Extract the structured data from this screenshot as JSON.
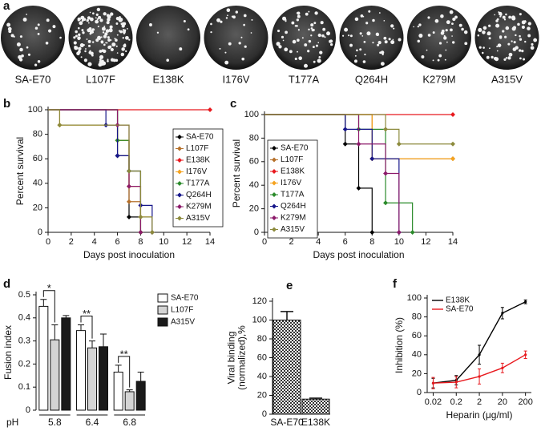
{
  "chart_data": [
    {
      "type": "plaque",
      "panel": "a",
      "categories": [
        "SA-E70",
        "L107F",
        "E138K",
        "I176V",
        "T177A",
        "Q264H",
        "K279M",
        "A315V"
      ]
    },
    {
      "type": "step",
      "panel": "b",
      "xlabel": "Days post inoculation",
      "ylabel": "Percent survival",
      "xlim": [
        0,
        14
      ],
      "xticks": [
        0,
        2,
        4,
        6,
        8,
        10,
        12,
        14
      ],
      "ylim": [
        0,
        100
      ],
      "yticks": [
        0,
        20,
        40,
        60,
        80,
        100
      ],
      "legend": "right",
      "series": [
        {
          "name": "SA-E70",
          "color": "#000000",
          "x": [
            0,
            6,
            7,
            8
          ],
          "values": [
            100,
            62.5,
            12.5,
            0
          ]
        },
        {
          "name": "L107F",
          "color": "#b5702a",
          "x": [
            0,
            6,
            7,
            8
          ],
          "values": [
            100,
            75,
            25,
            0
          ]
        },
        {
          "name": "E138K",
          "color": "#e8191e",
          "x": [
            0,
            14
          ],
          "values": [
            100,
            100
          ]
        },
        {
          "name": "I176V",
          "color": "#f5a31f",
          "x": [
            0,
            1,
            6,
            7,
            8,
            9
          ],
          "values": [
            100,
            87.5,
            75,
            37.5,
            12.5,
            0
          ]
        },
        {
          "name": "T177A",
          "color": "#2a8a2a",
          "x": [
            0,
            6,
            7,
            8
          ],
          "values": [
            100,
            75,
            50,
            0
          ]
        },
        {
          "name": "Q264H",
          "color": "#16168a",
          "x": [
            0,
            5,
            6,
            7,
            8,
            9
          ],
          "values": [
            100,
            87.5,
            62.5,
            50,
            22,
            0
          ]
        },
        {
          "name": "K279M",
          "color": "#8c1a6a",
          "x": [
            0,
            6,
            7,
            8
          ],
          "values": [
            100,
            87.5,
            37.5,
            0
          ]
        },
        {
          "name": "A315V",
          "color": "#8c8a3c",
          "x": [
            0,
            1,
            7,
            8,
            9
          ],
          "values": [
            100,
            87.5,
            50,
            12.5,
            0
          ]
        }
      ]
    },
    {
      "type": "step",
      "panel": "c",
      "xlabel": "Days post inoculation",
      "ylabel": "Percent survival",
      "xlim": [
        0,
        14
      ],
      "xticks": [
        0,
        2,
        4,
        6,
        8,
        10,
        12,
        14
      ],
      "ylim": [
        0,
        100
      ],
      "yticks": [
        0,
        20,
        40,
        60,
        80,
        100
      ],
      "legend": "left",
      "series": [
        {
          "name": "SA-E70",
          "color": "#000000",
          "x": [
            0,
            6,
            7,
            8
          ],
          "values": [
            100,
            75,
            37.5,
            0
          ]
        },
        {
          "name": "L107F",
          "color": "#b5702a",
          "x": [
            0,
            8,
            14
          ],
          "values": [
            100,
            62.5,
            62.5
          ]
        },
        {
          "name": "E138K",
          "color": "#e8191e",
          "x": [
            0,
            14
          ],
          "values": [
            100,
            100
          ]
        },
        {
          "name": "I176V",
          "color": "#f5a31f",
          "x": [
            0,
            8,
            14
          ],
          "values": [
            100,
            62.5,
            62.5
          ]
        },
        {
          "name": "T177A",
          "color": "#2a8a2a",
          "x": [
            0,
            7,
            9,
            11
          ],
          "values": [
            100,
            87.5,
            25,
            0
          ]
        },
        {
          "name": "Q264H",
          "color": "#16168a",
          "x": [
            0,
            6,
            8,
            10
          ],
          "values": [
            100,
            87.5,
            62.5,
            0
          ]
        },
        {
          "name": "K279M",
          "color": "#8c1a6a",
          "x": [
            0,
            7,
            9,
            10
          ],
          "values": [
            100,
            75,
            50,
            0
          ]
        },
        {
          "name": "A315V",
          "color": "#8c8a3c",
          "x": [
            0,
            9,
            10,
            14
          ],
          "values": [
            100,
            87.5,
            75,
            75
          ]
        }
      ]
    },
    {
      "type": "grouped-bar",
      "panel": "d",
      "ylabel": "Fusion index",
      "xlabel": "pH",
      "categories": [
        "5.8",
        "6.4",
        "6.8"
      ],
      "ylim": [
        0,
        0.5
      ],
      "yticks": [
        0,
        0.1,
        0.2,
        0.3,
        0.4,
        0.5
      ],
      "annotations": [
        "*",
        "**",
        "**"
      ],
      "series": [
        {
          "name": "SA-E70",
          "color": "#ffffff",
          "values": [
            0.45,
            0.345,
            0.165
          ],
          "errors": [
            0.03,
            0.025,
            0.03
          ]
        },
        {
          "name": "L107F",
          "color": "#d4d4d4",
          "values": [
            0.305,
            0.27,
            0.08
          ],
          "errors": [
            0.065,
            0.03,
            0.008
          ]
        },
        {
          "name": "A315V",
          "color": "#1a1a1a",
          "values": [
            0.4,
            0.275,
            0.125
          ],
          "errors": [
            0.01,
            0.055,
            0.04
          ]
        }
      ]
    },
    {
      "type": "bar",
      "panel": "e",
      "ylabel": [
        "Viral binding",
        "(normalized),%"
      ],
      "categories": [
        "SA-E70",
        "E138K"
      ],
      "values": [
        100,
        16
      ],
      "errors": [
        9,
        1
      ],
      "ylim": [
        0,
        120
      ],
      "yticks": [
        0,
        20,
        40,
        60,
        80,
        100,
        120
      ]
    },
    {
      "type": "line",
      "panel": "f",
      "xlabel": "Heparin (μg/ml)",
      "ylabel": "Inhibition (%)",
      "log_x": true,
      "xlim": [
        0.011,
        360
      ],
      "xticks": [
        0.02,
        0.2,
        2,
        20,
        200
      ],
      "ylim": [
        0,
        100
      ],
      "yticks": [
        0,
        20,
        40,
        60,
        80,
        100
      ],
      "series": [
        {
          "name": "E138K",
          "color": "#000000",
          "x": [
            0.02,
            0.2,
            2,
            20,
            200
          ],
          "values": [
            10,
            13,
            40,
            84,
            96
          ],
          "errors": [
            5,
            5,
            10,
            6,
            2
          ]
        },
        {
          "name": "SA-E70",
          "color": "#e8191e",
          "x": [
            0.02,
            0.2,
            2,
            20,
            200
          ],
          "values": [
            10,
            11,
            17,
            26,
            40
          ],
          "errors": [
            6,
            6,
            8,
            5,
            4
          ]
        }
      ]
    }
  ]
}
